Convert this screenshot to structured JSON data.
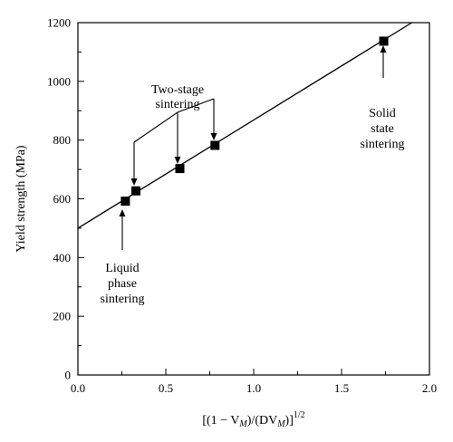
{
  "chart_data": {
    "type": "scatter",
    "ylabel": "Yield strength (MPa)",
    "xlabel_parts": [
      "[(1 − V",
      "M",
      ")/(DV",
      "M",
      ")]",
      "1/2"
    ],
    "xlim": [
      0,
      2.0
    ],
    "ylim": [
      0,
      1200
    ],
    "x_ticks": [
      "0.0",
      "0.5",
      "1.0",
      "1.5",
      "2.0"
    ],
    "y_ticks": [
      "0",
      "200",
      "400",
      "600",
      "800",
      "1000",
      "1200"
    ],
    "grid": false,
    "points": [
      {
        "x": 0.27,
        "y": 592
      },
      {
        "x": 0.33,
        "y": 627
      },
      {
        "x": 0.58,
        "y": 703
      },
      {
        "x": 0.78,
        "y": 782
      },
      {
        "x": 1.74,
        "y": 1137
      }
    ],
    "fit_line": {
      "x0": 0,
      "y0": 500,
      "x1": 1.9,
      "y1": 1200
    },
    "annotations": {
      "two_stage": [
        "Two-stage",
        "sintering"
      ],
      "liquid": [
        "Liquid",
        "phase",
        "sintering"
      ],
      "solid": [
        "Solid",
        "state",
        "sintering"
      ]
    }
  }
}
